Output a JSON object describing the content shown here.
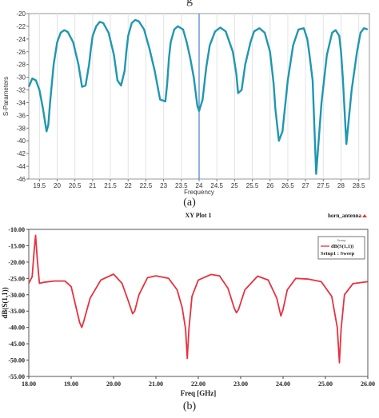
{
  "figure_title_fragment": "g",
  "captions": {
    "a": "(a)",
    "b": "(b)"
  },
  "chart_data": [
    {
      "type": "line",
      "title": "",
      "xlabel": "Frequency",
      "ylabel": "S-Parameters",
      "xlim": [
        19.2,
        28.8
      ],
      "ylim": [
        -46,
        -20
      ],
      "xticks": [
        19.5,
        20,
        20.5,
        21,
        21.5,
        22,
        22.5,
        23,
        23.5,
        24,
        24.5,
        25,
        25.5,
        26,
        26.5,
        27,
        27.5,
        28,
        28.5
      ],
      "yticks": [
        -20,
        -22,
        -24,
        -26,
        -28,
        -30,
        -32,
        -34,
        -36,
        -38,
        -40,
        -42,
        -44,
        -46
      ],
      "marker_line_x": 24,
      "grid": "vertical",
      "color": "#1f97b0",
      "series": [
        {
          "x": [
            19.2,
            19.3,
            19.4,
            19.5,
            19.6,
            19.7,
            19.75,
            19.8,
            19.9,
            20.0,
            20.1,
            20.2,
            20.3,
            20.45,
            20.6,
            20.7,
            20.8,
            20.9,
            20.95,
            21.0,
            21.1,
            21.2,
            21.3,
            21.45,
            21.6,
            21.7,
            21.8,
            21.9,
            21.95,
            22.0,
            22.1,
            22.2,
            22.3,
            22.45,
            22.6,
            22.75,
            22.9,
            23.05,
            23.1,
            23.15,
            23.2,
            23.3,
            23.4,
            23.55,
            23.65,
            23.75,
            23.85,
            23.95,
            24.0,
            24.1,
            24.2,
            24.3,
            24.45,
            24.6,
            24.75,
            24.95,
            25.05,
            25.1,
            25.2,
            25.3,
            25.45,
            25.55,
            25.7,
            25.85,
            26.0,
            26.1,
            26.15,
            26.25,
            26.35,
            26.5,
            26.65,
            26.8,
            26.95,
            27.05,
            27.1,
            27.2,
            27.3,
            27.45,
            27.6,
            27.75,
            27.85,
            27.95,
            28.0,
            28.05,
            28.15,
            28.3,
            28.45,
            28.55,
            28.65,
            28.75
          ],
          "y": [
            -31.5,
            -30.2,
            -30.5,
            -32,
            -35,
            -38.5,
            -37.5,
            -34,
            -28,
            -24.5,
            -23,
            -22.6,
            -22.9,
            -24.5,
            -28,
            -31.5,
            -31.3,
            -28,
            -25.5,
            -23.5,
            -22,
            -21.3,
            -21.5,
            -23,
            -26.5,
            -30.5,
            -31.3,
            -29,
            -26,
            -23.5,
            -21.5,
            -21,
            -21.2,
            -22.5,
            -25.5,
            -29,
            -33.5,
            -33.8,
            -31,
            -27,
            -24.5,
            -22.5,
            -22,
            -22.5,
            -24.5,
            -27,
            -30,
            -34.5,
            -35.3,
            -33.5,
            -28.5,
            -25,
            -22.8,
            -22.2,
            -22.8,
            -26,
            -29.5,
            -32.5,
            -32,
            -28,
            -24.5,
            -22.8,
            -22.3,
            -23,
            -26,
            -31,
            -35,
            -40,
            -38.5,
            -30.5,
            -25,
            -22.5,
            -22.3,
            -24,
            -26,
            -30.5,
            -45.2,
            -34,
            -26.5,
            -23,
            -22.6,
            -23.5,
            -26,
            -30,
            -40.5,
            -32,
            -26,
            -23,
            -22.3,
            -22.5
          ]
        }
      ]
    },
    {
      "type": "line",
      "title": "XY Plot 1",
      "corner_label": "horn_antenna",
      "xlabel": "Freq [GHz]",
      "ylabel": "dB(S(1,1))",
      "xlim": [
        18.0,
        26.0
      ],
      "ylim": [
        -55,
        -10
      ],
      "xticks": [
        18.0,
        19.0,
        20.0,
        21.0,
        22.0,
        23.0,
        24.0,
        25.0,
        26.0
      ],
      "xtick_labels": [
        "18.00",
        "19.00",
        "20.00",
        "21.00",
        "22.00",
        "23.00",
        "24.00",
        "25.00",
        "26.00"
      ],
      "yticks": [
        -10,
        -15,
        -20,
        -25,
        -30,
        -35,
        -40,
        -45,
        -50,
        -55
      ],
      "ytick_labels": [
        "-10.00",
        "-15.00",
        "-20.00",
        "-25.00",
        "-30.00",
        "-35.00",
        "-40.00",
        "-45.00",
        "-50.00",
        "-55.00"
      ],
      "grid": "none",
      "legend": {
        "placement": "top-right",
        "header": "Sweep",
        "entries": [
          "dB(S(1,1))",
          "Setup1 : Sweep"
        ]
      },
      "color": "#e8313e",
      "series": [
        {
          "name": "dB(S(1,1))",
          "x": [
            18.0,
            18.08,
            18.13,
            18.16,
            18.2,
            18.25,
            18.35,
            18.6,
            18.85,
            19.0,
            19.1,
            19.2,
            19.25,
            19.3,
            19.45,
            19.7,
            20.0,
            20.2,
            20.35,
            20.45,
            20.5,
            20.6,
            20.8,
            21.0,
            21.3,
            21.5,
            21.62,
            21.7,
            21.74,
            21.78,
            21.85,
            22.0,
            22.3,
            22.5,
            22.7,
            22.85,
            22.9,
            22.95,
            23.1,
            23.4,
            23.65,
            23.85,
            23.95,
            24.0,
            24.1,
            24.3,
            24.6,
            24.9,
            25.15,
            25.28,
            25.33,
            25.37,
            25.45,
            25.65,
            26.0
          ],
          "y": [
            -26.5,
            -24.5,
            -16,
            -11.8,
            -19,
            -26.5,
            -26.2,
            -25.8,
            -25.8,
            -27.5,
            -33,
            -38.5,
            -40,
            -38,
            -31,
            -25.5,
            -23.7,
            -26.5,
            -32,
            -35.8,
            -35,
            -30,
            -24.8,
            -24.2,
            -25,
            -28.5,
            -34,
            -40.5,
            -49.5,
            -40.5,
            -30.5,
            -25.5,
            -23.8,
            -24.2,
            -28,
            -34.2,
            -35.5,
            -34.5,
            -28.5,
            -24.3,
            -25.5,
            -31,
            -36.5,
            -34.5,
            -28.5,
            -25,
            -25.2,
            -26,
            -30.5,
            -40,
            -50.8,
            -40.5,
            -30,
            -26.6,
            -26.0
          ]
        }
      ]
    }
  ]
}
